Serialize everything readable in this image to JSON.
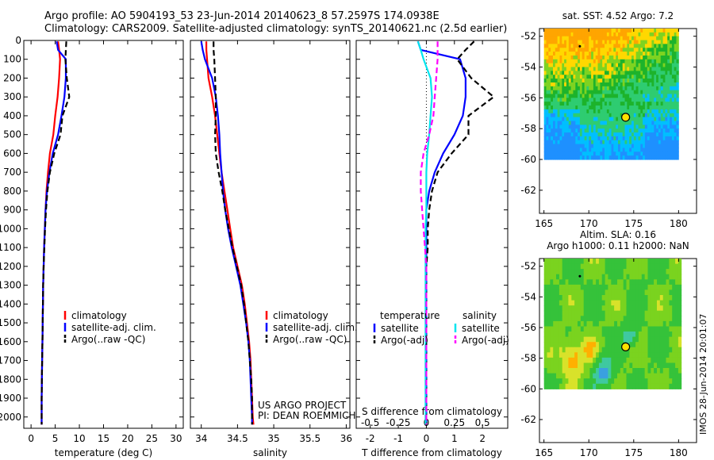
{
  "header": {
    "line1": "Argo profile: AO 5904193_53 23-Jun-2014 20140623_8 57.2597S 174.0938E",
    "line2": "Climatology: CARS2009. Satellite-adjusted climatology: synTS_20140621.nc (2.5d earlier)"
  },
  "credit": "IMOS 28-Jun-2014 20:01:07",
  "colors": {
    "climatology": "#ff0000",
    "satellite": "#0000ff",
    "argo": "#000000",
    "salinity_sat": "#00e5ee",
    "salinity_argo": "#ff00ff"
  },
  "chart_data": [
    {
      "type": "line",
      "id": "temperature",
      "xlabel": "temperature (deg C)",
      "xlim": [
        -1.5,
        31.5
      ],
      "ylim": [
        2060,
        0
      ],
      "xticks": [
        0,
        5,
        10,
        15,
        20,
        25,
        30
      ],
      "yticks": [
        0,
        100,
        200,
        300,
        400,
        500,
        600,
        700,
        800,
        900,
        1000,
        1100,
        1200,
        1300,
        1400,
        1500,
        1600,
        1700,
        1800,
        1900,
        2000
      ],
      "legend": [
        "climatology",
        "satellite-adj. clim.",
        "Argo(..raw -QC)"
      ],
      "depth": [
        5,
        50,
        100,
        200,
        300,
        400,
        500,
        600,
        700,
        800,
        900,
        1000,
        1100,
        1200,
        1300,
        1400,
        1500,
        1600,
        1700,
        1800,
        1900,
        2000,
        2040
      ],
      "series": [
        {
          "name": "climatology",
          "values": [
            5.6,
            5.8,
            6.0,
            5.8,
            5.5,
            5.0,
            4.6,
            3.9,
            3.5,
            3.2,
            3.0,
            2.85,
            2.7,
            2.6,
            2.5,
            2.45,
            2.4,
            2.35,
            2.3,
            2.25,
            2.2,
            2.2,
            2.2
          ]
        },
        {
          "name": "satellite-adj. clim.",
          "values": [
            5.3,
            5.6,
            7.2,
            7.2,
            6.9,
            6.3,
            5.6,
            4.5,
            3.8,
            3.3,
            3.0,
            2.85,
            2.7,
            2.6,
            2.5,
            2.45,
            2.4,
            2.35,
            2.3,
            2.25,
            2.2,
            2.2,
            2.2
          ]
        },
        {
          "name": "Argo(..raw -QC)",
          "values": [
            7.3,
            7.2,
            7.1,
            7.4,
            7.9,
            6.5,
            6.1,
            4.8,
            3.9,
            3.4,
            3.1,
            2.9,
            2.75,
            2.6,
            2.5,
            2.45,
            2.4,
            2.35,
            2.3,
            2.25,
            2.2,
            2.2,
            2.2
          ]
        }
      ]
    },
    {
      "type": "line",
      "id": "salinity",
      "xlabel": "salinity",
      "xlim": [
        33.85,
        36.05
      ],
      "ylim": [
        2060,
        0
      ],
      "xticks": [
        34,
        34.5,
        35,
        35.5,
        36
      ],
      "legend": [
        "climatology",
        "satellite-adj. clim.",
        "Argo(..raw -QC)"
      ],
      "annotations": [
        "US ARGO PROJECT",
        "PI: DEAN ROEMMICH"
      ],
      "depth": [
        5,
        50,
        100,
        200,
        300,
        400,
        500,
        600,
        700,
        800,
        900,
        1000,
        1100,
        1200,
        1300,
        1400,
        1500,
        1600,
        1700,
        1800,
        1900,
        2000,
        2040
      ],
      "series": [
        {
          "name": "climatology",
          "values": [
            34.07,
            34.07,
            34.08,
            34.1,
            34.15,
            34.19,
            34.22,
            34.25,
            34.28,
            34.32,
            34.36,
            34.4,
            34.44,
            34.5,
            34.56,
            34.6,
            34.63,
            34.66,
            34.68,
            34.69,
            34.7,
            34.71,
            34.72
          ]
        },
        {
          "name": "satellite-adj. clim.",
          "values": [
            34.0,
            34.02,
            34.05,
            34.15,
            34.2,
            34.23,
            34.25,
            34.26,
            34.28,
            34.3,
            34.33,
            34.37,
            34.42,
            34.48,
            34.54,
            34.58,
            34.62,
            34.65,
            34.67,
            34.68,
            34.69,
            34.7,
            34.7
          ]
        },
        {
          "name": "Argo(..raw -QC)",
          "values": [
            34.17,
            34.17,
            34.18,
            34.19,
            34.2,
            34.2,
            34.19,
            34.2,
            34.24,
            34.29,
            34.33,
            34.38,
            34.43,
            34.49,
            34.55,
            34.59,
            34.62,
            34.65,
            34.67,
            34.69,
            34.7,
            34.7,
            34.7
          ]
        }
      ]
    },
    {
      "type": "line",
      "id": "difference",
      "xlabel": "T difference from climatology",
      "xlabel2": "S difference from climatology",
      "xlim": [
        -2.5,
        2.9
      ],
      "xticks": [
        -2,
        -1,
        0,
        1,
        2
      ],
      "sticks_label": [
        "-0.5",
        "-0.25",
        "0",
        "0.25",
        "0.5"
      ],
      "sticks_pos": [
        -2,
        -1,
        0,
        1,
        2
      ],
      "ylim": [
        2060,
        0
      ],
      "legend_headers": [
        "temperature",
        "salinity"
      ],
      "legend": [
        "satellite",
        "Argo(-adj)",
        "satellite",
        "Argo(-adj)"
      ],
      "depth": [
        5,
        50,
        100,
        200,
        300,
        400,
        500,
        600,
        700,
        800,
        900,
        1000,
        1100,
        1200,
        1300,
        1400,
        1500,
        1600,
        1700,
        1800,
        1900,
        2000,
        2040
      ],
      "series": [
        {
          "name": "satellite",
          "group": "temperature",
          "values": [
            -0.3,
            -0.2,
            1.2,
            1.4,
            1.4,
            1.3,
            1.0,
            0.6,
            0.3,
            0.1,
            0.0,
            0.0,
            0.0,
            0.0,
            0.0,
            0.0,
            0.0,
            0.0,
            0.0,
            0.0,
            0.0,
            0.0,
            0.0
          ]
        },
        {
          "name": "Argo(-adj)",
          "group": "temperature",
          "values": [
            1.7,
            1.4,
            1.1,
            1.6,
            2.4,
            1.5,
            1.5,
            0.9,
            0.4,
            0.2,
            0.1,
            0.05,
            0.05,
            0.0,
            0.0,
            0.0,
            0.0,
            0.0,
            0.0,
            0.0,
            0.0,
            0.0,
            0.0
          ]
        },
        {
          "name": "satellite",
          "group": "salinity",
          "values": [
            -0.3,
            -0.2,
            -0.1,
            0.15,
            0.2,
            0.15,
            0.1,
            0.03,
            0.0,
            0.0,
            0.0,
            -0.03,
            -0.03,
            -0.03,
            -0.03,
            -0.03,
            -0.03,
            -0.03,
            -0.03,
            -0.03,
            -0.03,
            -0.03,
            -0.03
          ]
        },
        {
          "name": "Argo(-adj)",
          "group": "salinity",
          "values": [
            0.4,
            0.4,
            0.4,
            0.35,
            0.3,
            0.25,
            0.1,
            -0.1,
            -0.2,
            -0.2,
            -0.15,
            -0.1,
            -0.05,
            0.0,
            0.0,
            0.0,
            0.0,
            0.0,
            0.0,
            0.0,
            0.0,
            0.0,
            0.0
          ]
        }
      ]
    },
    {
      "type": "heatmap",
      "id": "sst_map",
      "title": "sat. SST: 4.52 Argo: 7.2",
      "xlim": [
        164.5,
        182
      ],
      "ylim": [
        -63.5,
        -51.5
      ],
      "xticks": [
        165,
        170,
        175,
        180
      ],
      "yticks": [
        -52,
        -54,
        -56,
        -58,
        -60,
        -62
      ],
      "data_extent_lon": [
        165,
        180
      ],
      "data_extent_lat": [
        -60,
        -51.5
      ],
      "profile": {
        "lon": 174.1,
        "lat": -57.26
      }
    },
    {
      "type": "heatmap",
      "id": "sla_map",
      "title": "Altim. SLA: 0.16",
      "subtitle": "Argo h1000: 0.11 h2000: NaN",
      "xlim": [
        164.5,
        182
      ],
      "ylim": [
        -63.5,
        -51.5
      ],
      "xticks": [
        165,
        170,
        175,
        180
      ],
      "yticks": [
        -52,
        -54,
        -56,
        -58,
        -60,
        -62
      ],
      "data_extent_lon": [
        165,
        180
      ],
      "data_extent_lat": [
        -60,
        -51.5
      ],
      "profile": {
        "lon": 174.1,
        "lat": -57.26
      }
    }
  ]
}
